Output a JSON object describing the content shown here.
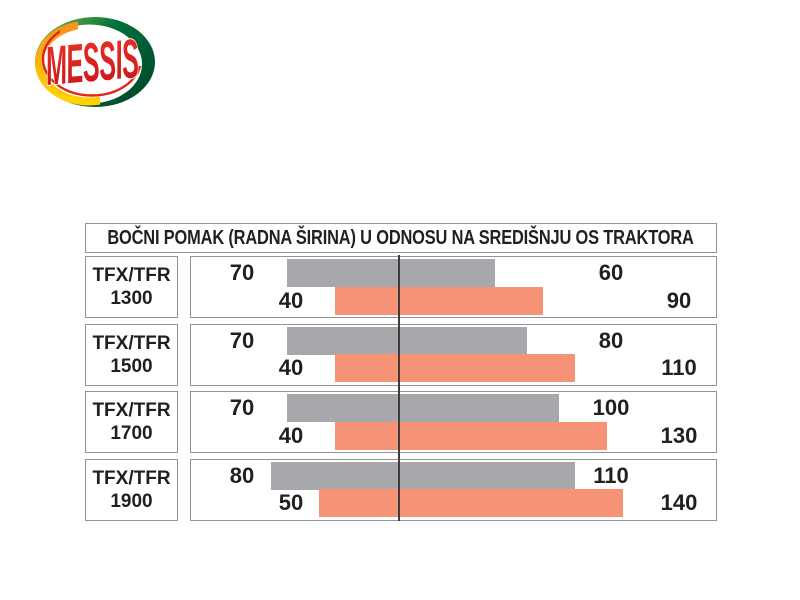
{
  "logo": {
    "text": "MESSIS",
    "colors": {
      "red": "#e1251b",
      "green_dark": "#00482b",
      "green_mid": "#00703c",
      "green_light": "#8dc63f",
      "gold": "#f7941d",
      "yellow": "#ffd400"
    }
  },
  "chart_data": {
    "type": "bar",
    "orientation": "horizontal",
    "title": "BOČNI POMAK (RADNA ŠIRINA) U ODNOSU NA SREDIŠNJU OS TRAKTORA",
    "legend_position": "none",
    "grid": false,
    "has_center_axis_line": true,
    "colors": {
      "gray_bar": "#a6a8ab",
      "orange_bar": "#f69276"
    },
    "rows": [
      {
        "label_line1": "TFX/TFR",
        "label_line2": "1300",
        "model": "TFX/TFR 1300",
        "bars": [
          {
            "series": "gray",
            "left_value": 70,
            "right_value": 60
          },
          {
            "series": "orange",
            "left_value": 40,
            "right_value": 90
          }
        ]
      },
      {
        "label_line1": "TFX/TFR",
        "label_line2": "1500",
        "model": "TFX/TFR 1500",
        "bars": [
          {
            "series": "gray",
            "left_value": 70,
            "right_value": 80
          },
          {
            "series": "orange",
            "left_value": 40,
            "right_value": 110
          }
        ]
      },
      {
        "label_line1": "TFX/TFR",
        "label_line2": "1700",
        "model": "TFX/TFR 1700",
        "bars": [
          {
            "series": "gray",
            "left_value": 70,
            "right_value": 100
          },
          {
            "series": "orange",
            "left_value": 40,
            "right_value": 130
          }
        ]
      },
      {
        "label_line1": "TFX/TFR",
        "label_line2": "1900",
        "model": "TFX/TFR 1900",
        "bars": [
          {
            "series": "gray",
            "left_value": 80,
            "right_value": 110
          },
          {
            "series": "orange",
            "left_value": 50,
            "right_value": 140
          }
        ]
      }
    ]
  }
}
